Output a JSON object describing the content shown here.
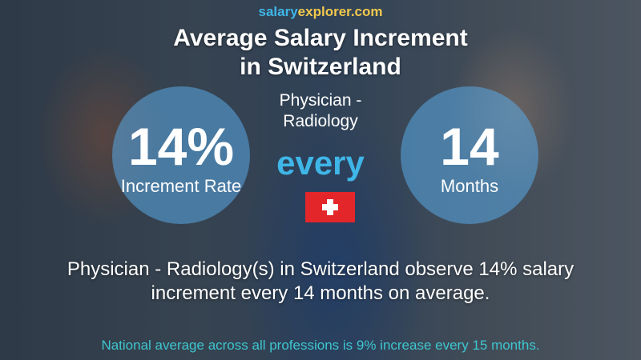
{
  "logo": {
    "part1": "salary",
    "part2": "explorer.com"
  },
  "title": {
    "line1": "Average Salary Increment",
    "line2": "in Switzerland"
  },
  "job": {
    "line1": "Physician -",
    "line2": "Radiology"
  },
  "increment": {
    "value": "14%",
    "label": "Increment Rate"
  },
  "connector": "every",
  "period": {
    "value": "14",
    "label": "Months"
  },
  "flag": {
    "country": "Switzerland",
    "icon": "swiss-flag-icon",
    "colors": {
      "red": "#e3262a",
      "white": "#ffffff"
    }
  },
  "summary": {
    "line1": "Physician - Radiology(s) in Switzerland observe 14% salary",
    "line2": "increment every 14 months on average."
  },
  "national": "National average across all professions is 9% increase every 15 months.",
  "colors": {
    "accent_blue": "#3fb6e8",
    "accent_yellow": "#f2c94c",
    "teal": "#3ec6cf"
  }
}
